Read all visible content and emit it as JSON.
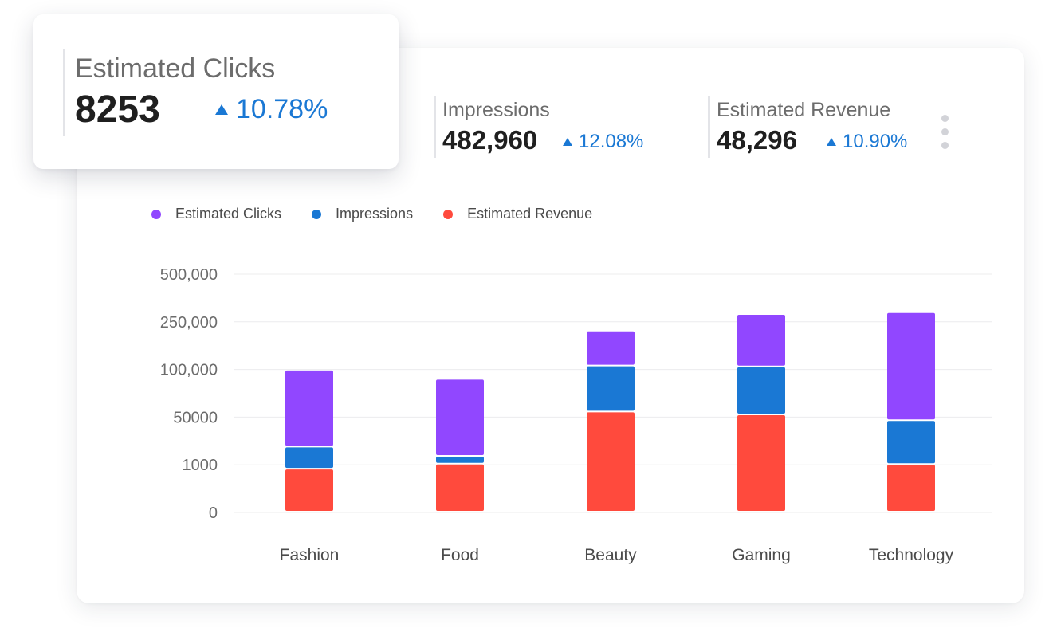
{
  "metrics": {
    "clicks": {
      "label": "Estimated Clicks",
      "value": "8253",
      "change": "10.78%"
    },
    "impressions": {
      "label": "Impressions",
      "value": "482,960",
      "change": "12.08%"
    },
    "revenue": {
      "label": "Estimated Revenue",
      "value": "48,296",
      "change": "10.90%"
    }
  },
  "menu": {
    "icon": "more-vertical-icon"
  },
  "colors": {
    "clicks": "#9147ff",
    "impressions": "#1a78d4",
    "revenue": "#ff4a3d",
    "trend_up": "#1a78d4"
  },
  "chart_data": {
    "type": "bar",
    "stacked": true,
    "categories": [
      "Fashion",
      "Food",
      "Beauty",
      "Gaming",
      "Technology"
    ],
    "y_ticks": [
      "0",
      "1000",
      "50000",
      "100,000",
      "250,000",
      "500,000"
    ],
    "y_scale": "categorical-nonlinear",
    "legend_position": "top-left",
    "grid": true,
    "series": [
      {
        "name": "Estimated Revenue",
        "color": "#ff4a3d",
        "values": [
          900,
          1350,
          55000,
          52000,
          1000
        ]
      },
      {
        "name": "Impressions",
        "color": "#1a78d4",
        "values": [
          18000,
          8000,
          55000,
          55000,
          45000
        ]
      },
      {
        "name": "Estimated Clicks",
        "color": "#9147ff",
        "values": [
          80000,
          80000,
          110000,
          180000,
          250000
        ]
      }
    ]
  }
}
